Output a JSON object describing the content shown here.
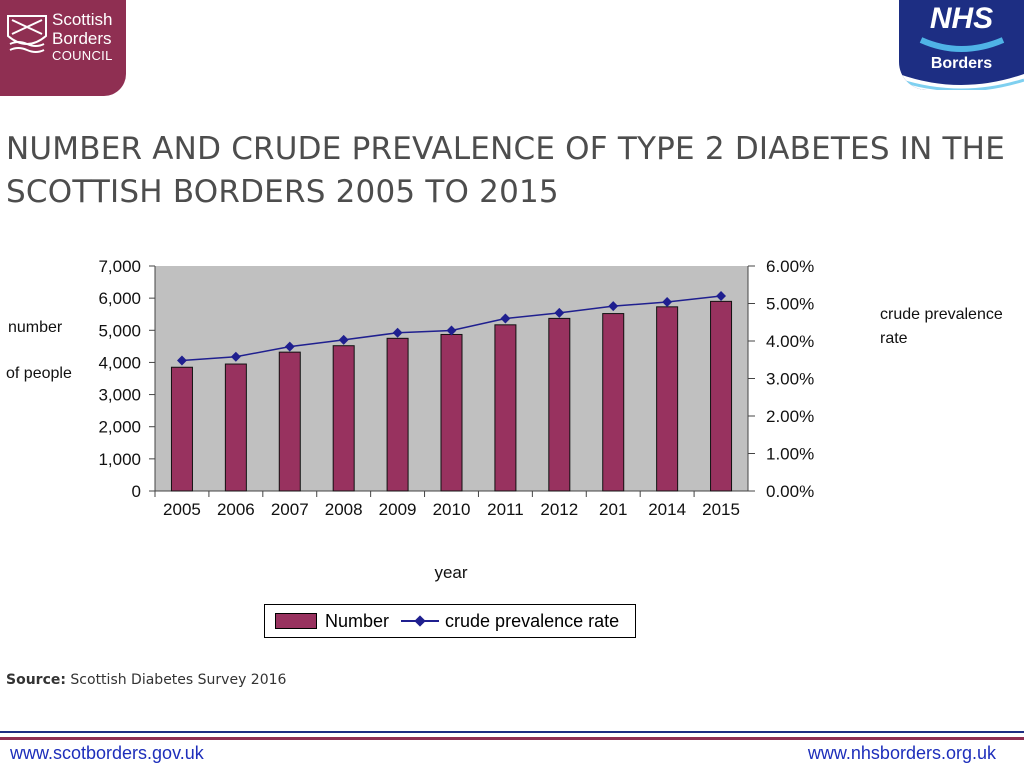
{
  "header": {
    "council_logo": {
      "line1": "Scottish",
      "line2": "Borders",
      "line3": "COUNCIL"
    },
    "nhs_logo": {
      "brand": "NHS",
      "region": "Borders"
    }
  },
  "title": "NUMBER AND CRUDE PREVALENCE OF TYPE 2 DIABETES IN THE SCOTTISH BORDERS 2005 TO 2015",
  "chart_data": {
    "type": "bar",
    "title": "",
    "categories": [
      "2005",
      "2006",
      "2007",
      "2008",
      "2009",
      "2010",
      "2011",
      "2012",
      "201",
      "2014",
      "2015"
    ],
    "series": [
      {
        "name": "Number",
        "type": "bar",
        "axis": "left",
        "color": "#98325f",
        "values": [
          3850,
          3950,
          4320,
          4520,
          4750,
          4870,
          5170,
          5370,
          5520,
          5730,
          5900
        ]
      },
      {
        "name": "crude prevalence rate",
        "type": "line",
        "axis": "right",
        "color": "#1f1f8f",
        "values": [
          3.48,
          3.58,
          3.85,
          4.03,
          4.22,
          4.28,
          4.6,
          4.75,
          4.93,
          5.04,
          5.2
        ]
      }
    ],
    "xlabel": "year",
    "ylabel_lines": [
      "number",
      "of people"
    ],
    "y2label_lines": [
      "crude prevalence",
      "rate"
    ],
    "ylim": [
      0,
      7000
    ],
    "yticks": [
      "0",
      "1,000",
      "2,000",
      "3,000",
      "4,000",
      "5,000",
      "6,000",
      "7,000"
    ],
    "y2lim": [
      0,
      6
    ],
    "y2ticks": [
      "0.00%",
      "1.00%",
      "2.00%",
      "3.00%",
      "4.00%",
      "5.00%",
      "6.00%"
    ],
    "grid": false,
    "plot_background": "#c0c0c0",
    "legend": {
      "position": "bottom-center",
      "number_label": "Number",
      "rate_label": "crude prevalence rate"
    }
  },
  "source": {
    "label": "Source:",
    "text": "Scottish Diabetes Survey 2016"
  },
  "footer": {
    "left_url": "www.scotborders.gov.uk",
    "right_url": "www.nhsborders.org.uk"
  }
}
